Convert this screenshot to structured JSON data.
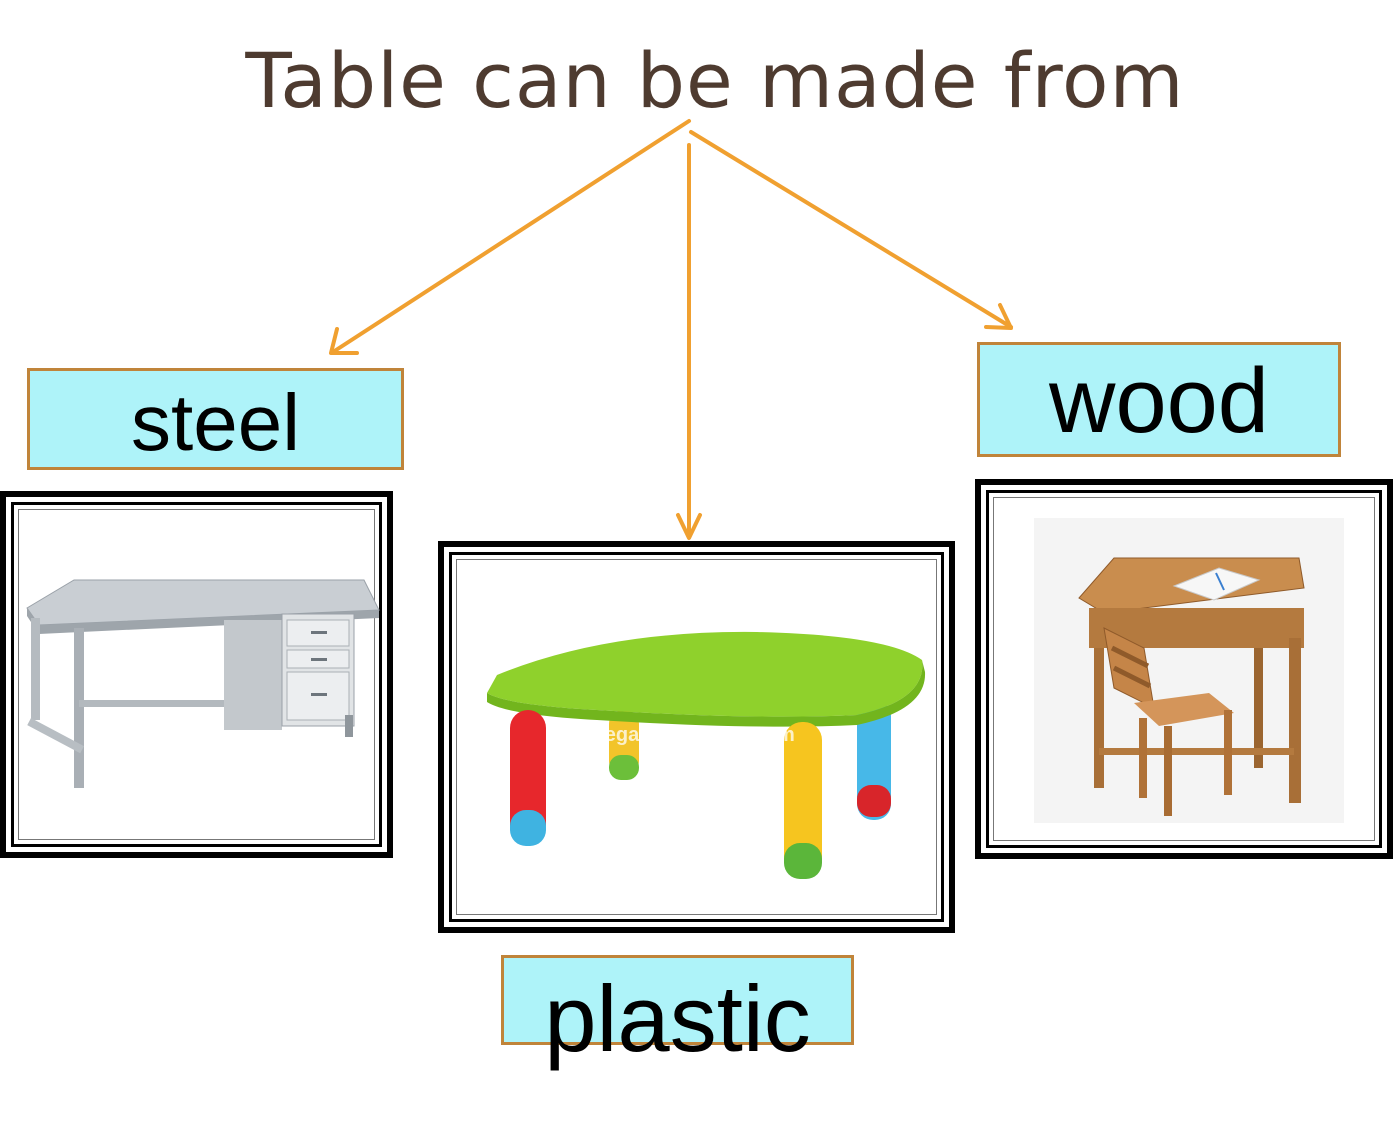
{
  "title": "Table can be made from",
  "materials": {
    "steel": "steel",
    "plastic": "plastic",
    "wood": "wood"
  },
  "watermark": "legal.en.alibaba.com",
  "colors": {
    "title_text": "#4e3b30",
    "arrow": "#f0a030",
    "label_fill": "#aef3f9",
    "label_border": "#c0843a",
    "frame": "#000000"
  },
  "images": {
    "steel": "steel-desk-illustration",
    "plastic": "plastic-kids-table-illustration",
    "wood": "wooden-school-desk-illustration"
  }
}
